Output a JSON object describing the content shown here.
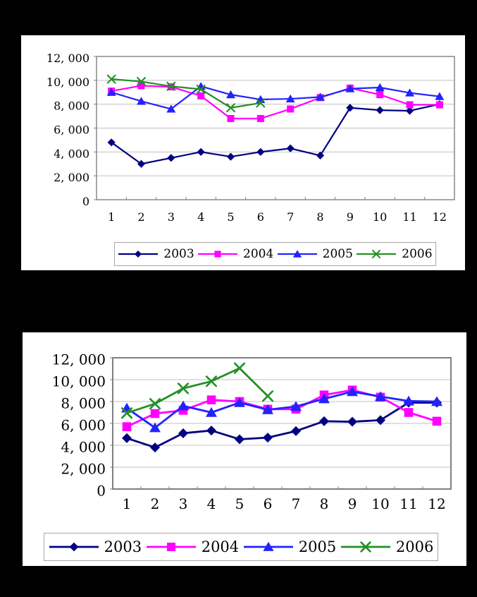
{
  "page": {
    "background_color": "#000000",
    "panel_color": "#FFFFFF",
    "gridline_color": "#C0C0C0",
    "axis_color": "#808080",
    "text_color": "#000000"
  },
  "chart_data": [
    {
      "name": "monthly-series-top",
      "type": "line",
      "title": "",
      "xlabel": "",
      "ylabel": "",
      "categories": [
        "1",
        "2",
        "3",
        "4",
        "5",
        "6",
        "7",
        "8",
        "9",
        "10",
        "11",
        "12"
      ],
      "ylim": [
        0,
        12000
      ],
      "ytick_interval": 2000,
      "ytick_labels": [
        "0",
        "2, 000",
        "4, 000",
        "6, 000",
        "8, 000",
        "10, 000",
        "12, 000"
      ],
      "grid": true,
      "legend_position": "bottom",
      "series": [
        {
          "name": "2003",
          "color": "#000080",
          "marker": "diamond",
          "values": [
            4800,
            3000,
            3500,
            4000,
            3600,
            4000,
            4300,
            3700,
            7700,
            7500,
            7450,
            8000
          ]
        },
        {
          "name": "2004",
          "color": "#FF00FF",
          "marker": "square",
          "values": [
            9100,
            9550,
            9450,
            8700,
            6800,
            6800,
            7600,
            8550,
            9350,
            8800,
            7950,
            7950
          ]
        },
        {
          "name": "2005",
          "color": "#2222FF",
          "marker": "triangle",
          "values": [
            9000,
            8250,
            7600,
            9500,
            8800,
            8400,
            8450,
            8600,
            9300,
            9400,
            8950,
            8650
          ]
        },
        {
          "name": "2006",
          "color": "#239023",
          "marker": "x",
          "values": [
            10100,
            9900,
            9500,
            9250,
            7700,
            8100,
            null,
            null,
            null,
            null,
            null,
            null
          ]
        }
      ]
    },
    {
      "name": "monthly-series-bottom",
      "type": "line",
      "title": "",
      "xlabel": "",
      "ylabel": "",
      "categories": [
        "1",
        "2",
        "3",
        "4",
        "5",
        "6",
        "7",
        "8",
        "9",
        "10",
        "11",
        "12"
      ],
      "ylim": [
        0,
        12000
      ],
      "ytick_interval": 2000,
      "ytick_labels": [
        "0",
        "2, 000",
        "4, 000",
        "6, 000",
        "8, 000",
        "10, 000",
        "12, 000"
      ],
      "grid": true,
      "legend_position": "bottom",
      "series": [
        {
          "name": "2003",
          "color": "#000080",
          "marker": "diamond",
          "values": [
            4650,
            3800,
            5100,
            5350,
            4550,
            4700,
            5300,
            6200,
            6150,
            6300,
            7900,
            7900
          ]
        },
        {
          "name": "2004",
          "color": "#FF00FF",
          "marker": "square",
          "values": [
            5700,
            6900,
            7200,
            8150,
            8000,
            7300,
            7300,
            8600,
            9050,
            8400,
            7000,
            6200
          ]
        },
        {
          "name": "2005",
          "color": "#2222FF",
          "marker": "triangle",
          "values": [
            7400,
            5600,
            7600,
            7000,
            7900,
            7250,
            7550,
            8250,
            8900,
            8450,
            8050,
            8000
          ]
        },
        {
          "name": "2006",
          "color": "#239023",
          "marker": "x",
          "values": [
            6950,
            7800,
            9200,
            9850,
            11050,
            8500,
            null,
            null,
            null,
            null,
            null,
            null
          ]
        }
      ]
    }
  ]
}
